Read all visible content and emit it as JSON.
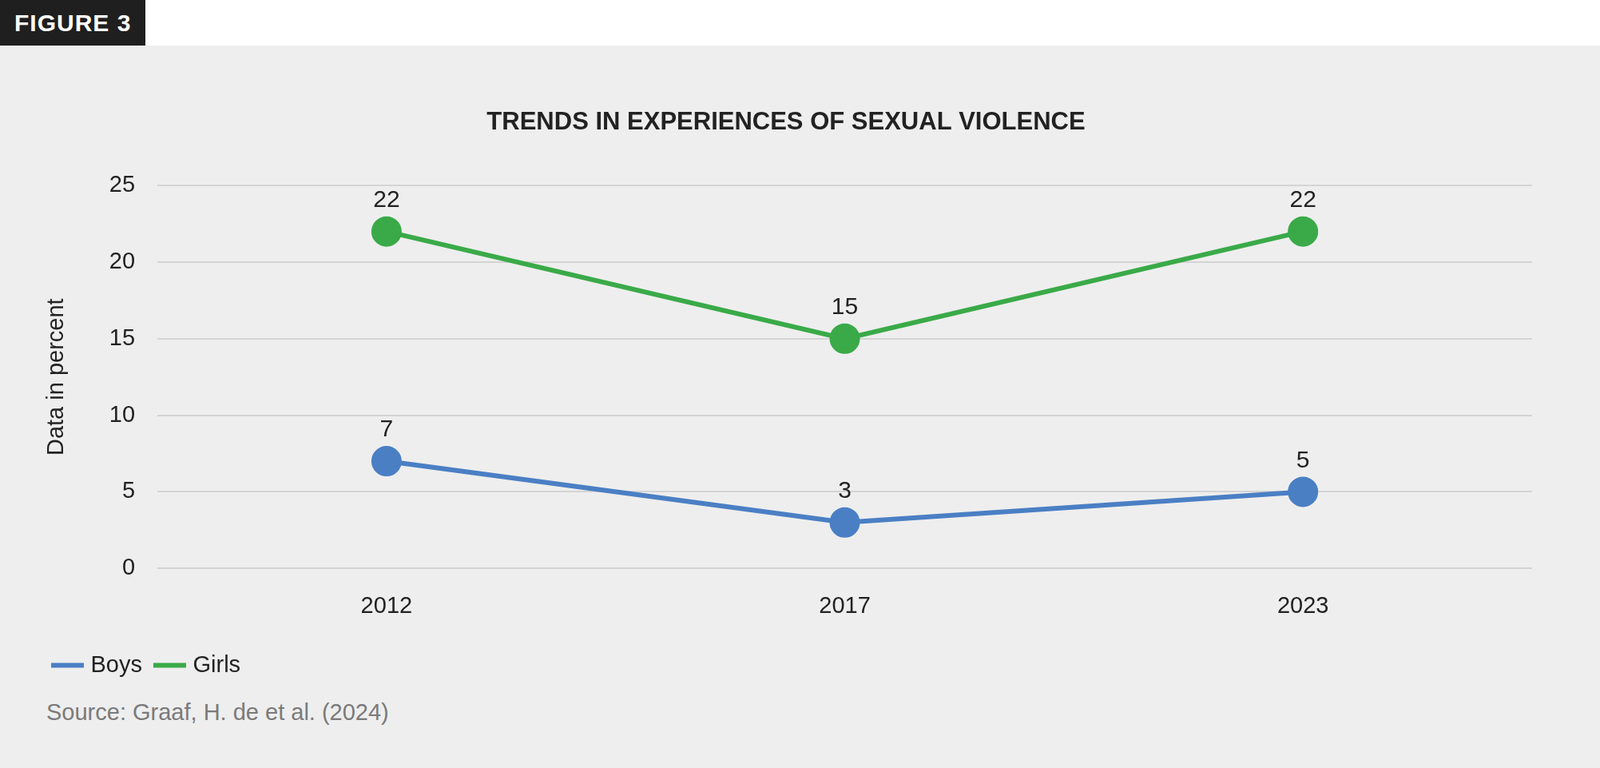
{
  "badge": "FIGURE 3",
  "chart_data": {
    "type": "line",
    "title": "TRENDS IN EXPERIENCES OF SEXUAL VIOLENCE",
    "y_label": "Data in percent",
    "categories": [
      "2012",
      "2017",
      "2023"
    ],
    "series": [
      {
        "name": "Boys",
        "color": "#4a7fc4",
        "values": [
          7,
          3,
          5
        ],
        "marker": "circle",
        "line_style": "solid"
      },
      {
        "name": "Girls",
        "color": "#3aaa48",
        "values": [
          22,
          15,
          22
        ],
        "marker": "circle",
        "line_style": "solid"
      }
    ],
    "ylim": [
      0,
      25
    ],
    "yticks": [
      0,
      5,
      10,
      15,
      20,
      25
    ],
    "grid": true,
    "legend": "bottom-left",
    "data_labels": true
  },
  "source": "Source: Graaf, H. de et al. (2024)"
}
